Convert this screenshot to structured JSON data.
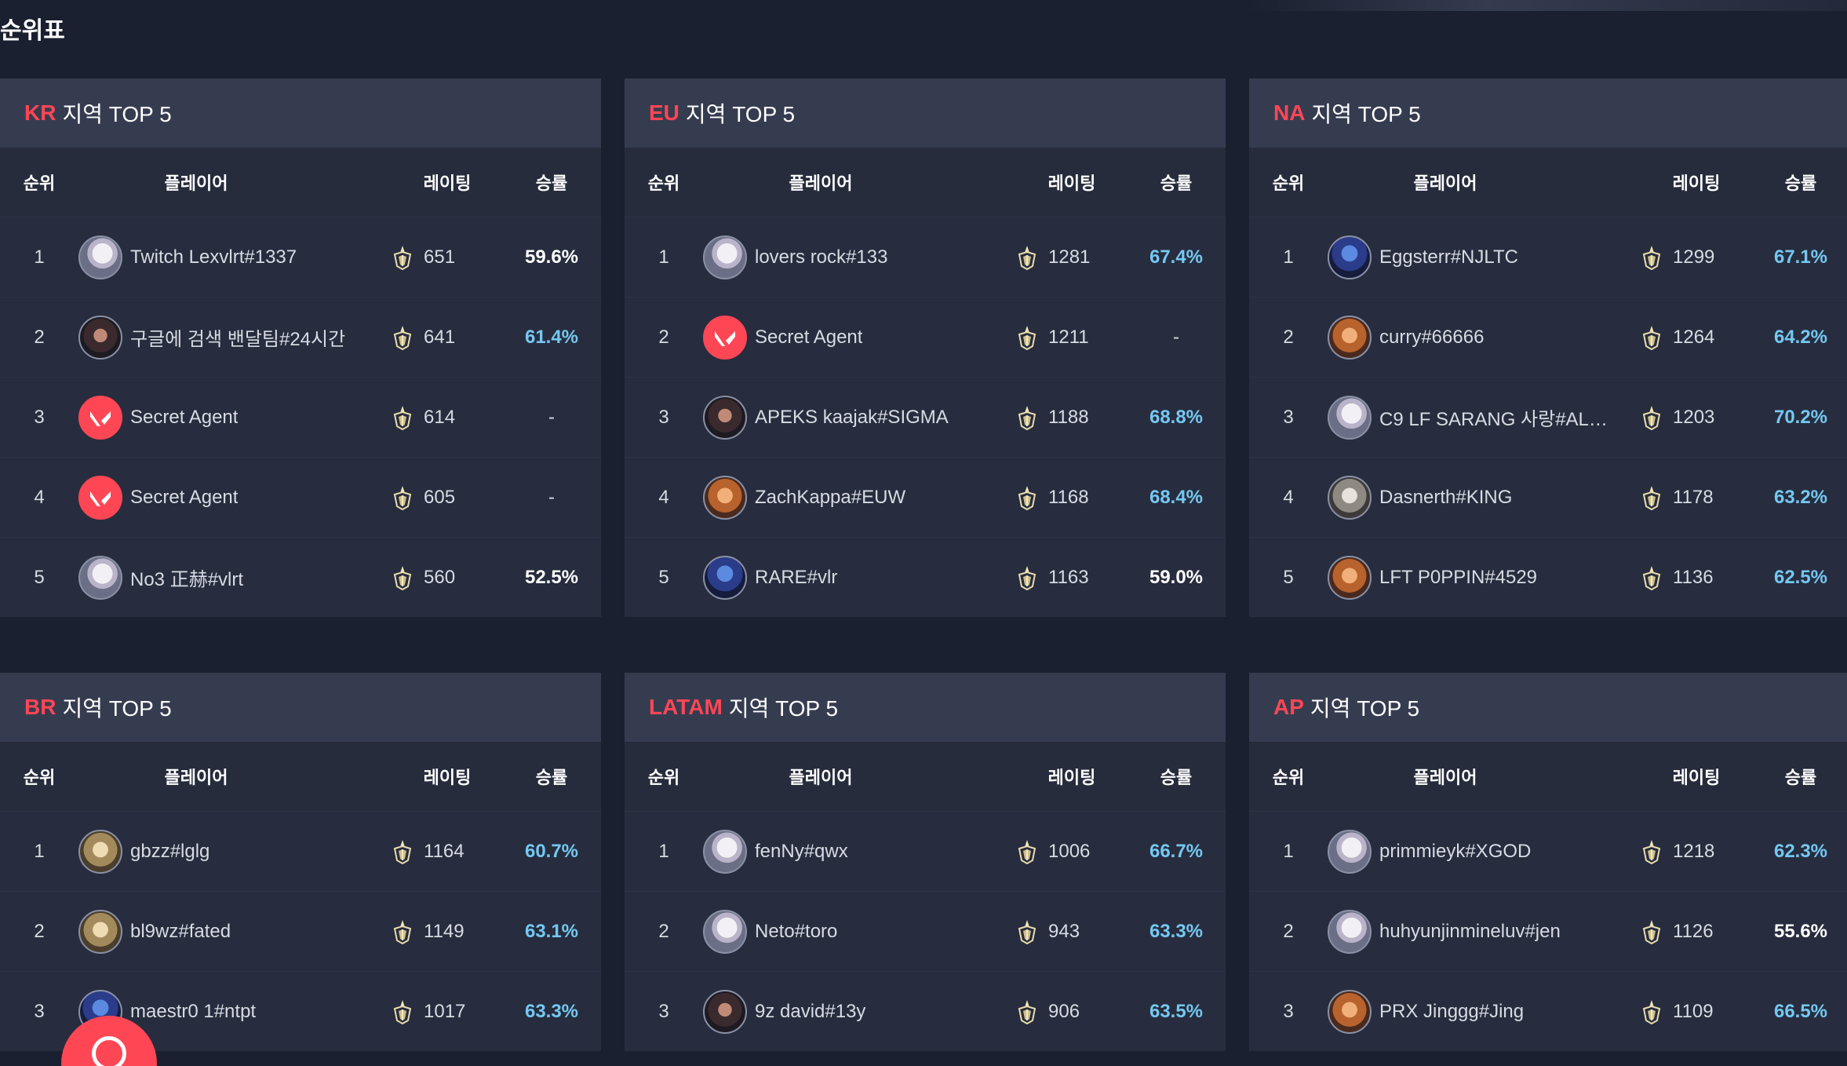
{
  "page": {
    "title": "순위표"
  },
  "columns": {
    "rank": "순위",
    "player": "플레이어",
    "rating": "레이팅",
    "winrate": "승률"
  },
  "colors": {
    "accent": "#ff4655",
    "winrate_high": "#74c8f2",
    "background": "#1b2030",
    "card_header": "#363c50"
  },
  "region_suffix": "지역 TOP 5",
  "regions": [
    {
      "code": "KR",
      "rows": [
        {
          "rank": "1",
          "name": "Twitch Lexvlrt#1337",
          "avatar": "agent-portrait-white-hair",
          "rating": "651",
          "winrate": "59.6%",
          "tone": "low"
        },
        {
          "rank": "2",
          "name": "구글에 검색 밴달팀#24시간",
          "avatar": "agent-portrait-dark",
          "rating": "641",
          "winrate": "61.4%",
          "tone": "high"
        },
        {
          "rank": "3",
          "name": "Secret Agent",
          "avatar": "valorant-logo",
          "rating": "614",
          "winrate": "-",
          "tone": "none"
        },
        {
          "rank": "4",
          "name": "Secret Agent",
          "avatar": "valorant-logo",
          "rating": "605",
          "winrate": "-",
          "tone": "none"
        },
        {
          "rank": "5",
          "name": "No3 正赫#vlrt",
          "avatar": "agent-portrait-white-hair",
          "rating": "560",
          "winrate": "52.5%",
          "tone": "low"
        }
      ]
    },
    {
      "code": "EU",
      "rows": [
        {
          "rank": "1",
          "name": "lovers rock#133",
          "avatar": "agent-portrait-white-hair",
          "rating": "1281",
          "winrate": "67.4%",
          "tone": "high"
        },
        {
          "rank": "2",
          "name": "Secret Agent",
          "avatar": "valorant-logo",
          "rating": "1211",
          "winrate": "-",
          "tone": "none"
        },
        {
          "rank": "3",
          "name": "APEKS kaajak#SIGMA",
          "avatar": "agent-portrait-dark",
          "rating": "1188",
          "winrate": "68.8%",
          "tone": "high"
        },
        {
          "rank": "4",
          "name": "ZachKappa#EUW",
          "avatar": "agent-portrait-orange",
          "rating": "1168",
          "winrate": "68.4%",
          "tone": "high"
        },
        {
          "rank": "5",
          "name": "RARE#vlr",
          "avatar": "agent-portrait-blue",
          "rating": "1163",
          "winrate": "59.0%",
          "tone": "low"
        }
      ]
    },
    {
      "code": "NA",
      "rows": [
        {
          "rank": "1",
          "name": "Eggsterr#NJLTC",
          "avatar": "agent-portrait-blue",
          "rating": "1299",
          "winrate": "67.1%",
          "tone": "high"
        },
        {
          "rank": "2",
          "name": "curry#66666",
          "avatar": "agent-portrait-orange",
          "rating": "1264",
          "winrate": "64.2%",
          "tone": "high"
        },
        {
          "rank": "3",
          "name": "C9 LF SARANG 사랑#ALO...",
          "avatar": "agent-portrait-white-hair",
          "rating": "1203",
          "winrate": "70.2%",
          "tone": "high"
        },
        {
          "rank": "4",
          "name": "Dasnerth#KING",
          "avatar": "agent-portrait-grey",
          "rating": "1178",
          "winrate": "63.2%",
          "tone": "high"
        },
        {
          "rank": "5",
          "name": "LFT P0PPIN#4529",
          "avatar": "agent-portrait-orange",
          "rating": "1136",
          "winrate": "62.5%",
          "tone": "high"
        }
      ]
    },
    {
      "code": "BR",
      "rows": [
        {
          "rank": "1",
          "name": "gbzz#lglg",
          "avatar": "agent-portrait-blonde",
          "rating": "1164",
          "winrate": "60.7%",
          "tone": "high"
        },
        {
          "rank": "2",
          "name": "bl9wz#fated",
          "avatar": "agent-portrait-blonde",
          "rating": "1149",
          "winrate": "63.1%",
          "tone": "high"
        },
        {
          "rank": "3",
          "name": "maestr0 1#ntpt",
          "avatar": "agent-portrait-blue",
          "rating": "1017",
          "winrate": "63.3%",
          "tone": "high"
        }
      ]
    },
    {
      "code": "LATAM",
      "rows": [
        {
          "rank": "1",
          "name": "fenNy#qwx",
          "avatar": "agent-portrait-white-hair",
          "rating": "1006",
          "winrate": "66.7%",
          "tone": "high"
        },
        {
          "rank": "2",
          "name": "Neto#toro",
          "avatar": "agent-portrait-white-hair",
          "rating": "943",
          "winrate": "63.3%",
          "tone": "high"
        },
        {
          "rank": "3",
          "name": "9z david#13y",
          "avatar": "agent-portrait-dark",
          "rating": "906",
          "winrate": "63.5%",
          "tone": "high"
        }
      ]
    },
    {
      "code": "AP",
      "rows": [
        {
          "rank": "1",
          "name": "primmieyk#XGOD",
          "avatar": "agent-portrait-white-hair",
          "rating": "1218",
          "winrate": "62.3%",
          "tone": "high"
        },
        {
          "rank": "2",
          "name": "huhyunjinmineluv#jen",
          "avatar": "agent-portrait-white-hair",
          "rating": "1126",
          "winrate": "55.6%",
          "tone": "low"
        },
        {
          "rank": "3",
          "name": "PRX Jinggg#Jing",
          "avatar": "agent-portrait-orange",
          "rating": "1109",
          "winrate": "66.5%",
          "tone": "high"
        }
      ]
    }
  ]
}
